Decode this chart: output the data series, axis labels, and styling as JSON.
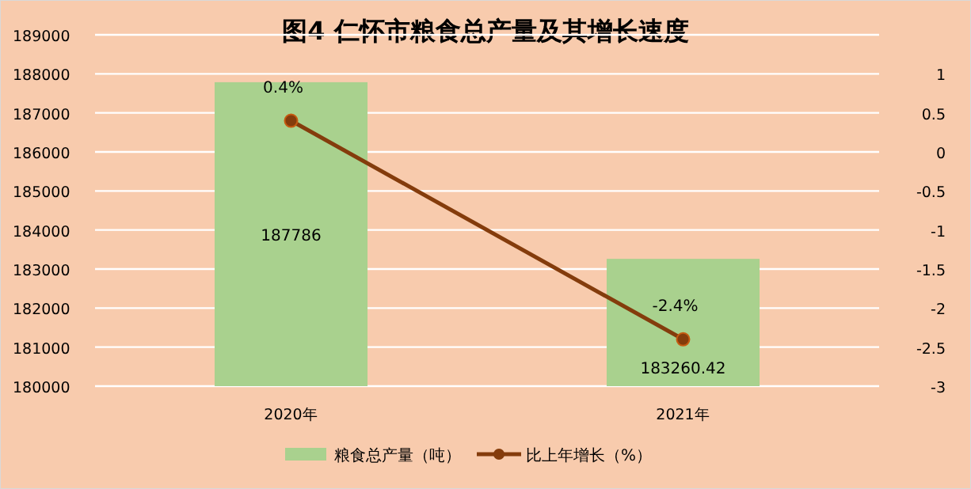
{
  "chart_data": {
    "type": "bar",
    "title": "图4  仁怀市粮食总产量及其增长速度",
    "categories": [
      "2020年",
      "2021年"
    ],
    "series": [
      {
        "name": "粮食总产量（吨）",
        "color": "#a9d18e",
        "values": [
          187786,
          183260.42
        ],
        "value_labels": [
          "187786",
          "183260.42"
        ]
      },
      {
        "name": "比上年增长（%）",
        "type": "line",
        "axis": "y2",
        "color": "#843c0c",
        "marker": "circle",
        "values": [
          0.4,
          -2.4
        ],
        "value_labels": [
          "0.4%",
          "-2.4%"
        ]
      }
    ],
    "ylim": [
      180000,
      189000
    ],
    "yticks": [
      180000,
      181000,
      182000,
      183000,
      184000,
      185000,
      186000,
      187000,
      188000,
      189000
    ],
    "y2lim": [
      -3,
      1.5
    ],
    "y2ticks": [
      -3,
      -2.5,
      -2,
      -1.5,
      -1,
      -0.5,
      0,
      0.5,
      1
    ],
    "grid": "y",
    "legend": "bottom"
  }
}
